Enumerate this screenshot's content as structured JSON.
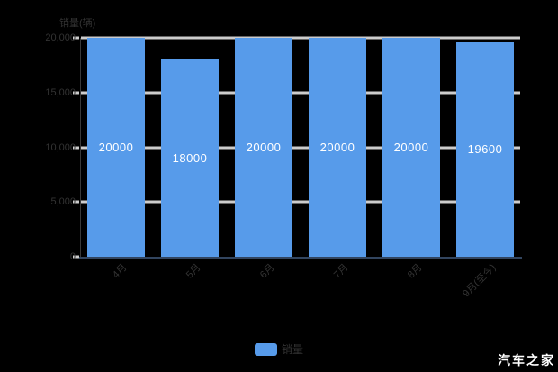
{
  "background": "#000000",
  "watermark": "汽车之家",
  "colors": {
    "bar": "#579BEA",
    "grid": "#cccccc",
    "axis_text": "#333333",
    "value_text": "#ffffff",
    "x_axis_line": "#32455f",
    "y_axis_line": "#3a3a3a"
  },
  "chart_data": {
    "type": "bar",
    "title": "",
    "y_axis_title": "销量(辆)",
    "categories": [
      "4月",
      "5月",
      "6月",
      "7月",
      "8月",
      "9月(至今)"
    ],
    "values": [
      20000,
      18000,
      20000,
      20000,
      20000,
      19600
    ],
    "value_labels": [
      "20000",
      "18000",
      "20000",
      "20000",
      "20000",
      "19600"
    ],
    "y_ticks": [
      "20,000",
      "15,000",
      "10,000",
      "5,000",
      "0"
    ],
    "ylim": [
      0,
      20000
    ],
    "grid": true,
    "x_label_rotation": 45,
    "legend": {
      "label": "销量",
      "position": "bottom-center"
    }
  }
}
